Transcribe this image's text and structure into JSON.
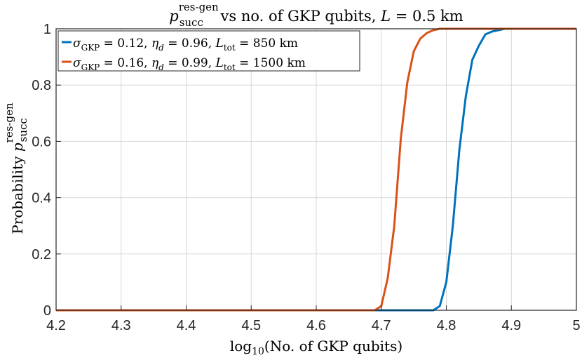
{
  "chart_data": {
    "type": "line",
    "title": "p_succ^res-gen vs no. of GKP qubits, L = 0.5 km",
    "title_parts": {
      "sym": "p",
      "sub": "succ",
      "sup": "res-gen",
      "rest": " vs no. of GKP qubits, ",
      "L": "L",
      "eq": " = 0.5 km"
    },
    "xlabel": "log10(No. of GKP qubits)",
    "xlabel_parts": {
      "log": "log",
      "base": "10",
      "rest": "(No. of GKP qubits)"
    },
    "ylabel": "Probability p_succ^res-gen",
    "ylabel_parts": {
      "word": "Probability ",
      "sym": "p",
      "sub": "succ",
      "sup": "res-gen"
    },
    "xlim": [
      4.2,
      5.0
    ],
    "ylim": [
      0,
      1
    ],
    "xticks": [
      "4.2",
      "4.3",
      "4.4",
      "4.5",
      "4.6",
      "4.7",
      "4.8",
      "4.9",
      "5"
    ],
    "yticks": [
      "0",
      "0.2",
      "0.4",
      "0.6",
      "0.8",
      "1"
    ],
    "grid": true,
    "legend_position": "top-left",
    "series": [
      {
        "name": "σ_GKP = 0.12, η_d = 0.96, L_tot = 850 km",
        "label_parts": {
          "sigma": "σ",
          "sigma_sub": "GKP",
          "a": " = 0.12, ",
          "eta": "η",
          "eta_sub": "d",
          "b": " = 0.96, ",
          "L": "L",
          "L_sub": "tot",
          "c": " = 850 km"
        },
        "color": "#0072BD",
        "x": [
          4.2,
          4.78,
          4.79,
          4.8,
          4.81,
          4.82,
          4.83,
          4.84,
          4.85,
          4.86,
          4.87,
          4.88,
          4.89,
          4.9,
          5.0
        ],
        "y": [
          0,
          0,
          0.015,
          0.1,
          0.3,
          0.57,
          0.76,
          0.89,
          0.94,
          0.98,
          0.99,
          0.995,
          1,
          1,
          1
        ]
      },
      {
        "name": "σ_GKP = 0.16, η_d = 0.99, L_tot = 1500 km",
        "label_parts": {
          "sigma": "σ",
          "sigma_sub": "GKP",
          "a": " = 0.16, ",
          "eta": "η",
          "eta_sub": "d",
          "b": " = 0.99, ",
          "L": "L",
          "L_sub": "tot",
          "c": " = 1500 km"
        },
        "color": "#D95319",
        "x": [
          4.2,
          4.69,
          4.7,
          4.71,
          4.72,
          4.73,
          4.74,
          4.75,
          4.76,
          4.77,
          4.78,
          4.79,
          4.8,
          5.0
        ],
        "y": [
          0,
          0,
          0.015,
          0.115,
          0.3,
          0.61,
          0.81,
          0.92,
          0.965,
          0.985,
          0.995,
          1,
          1,
          1
        ]
      }
    ]
  }
}
